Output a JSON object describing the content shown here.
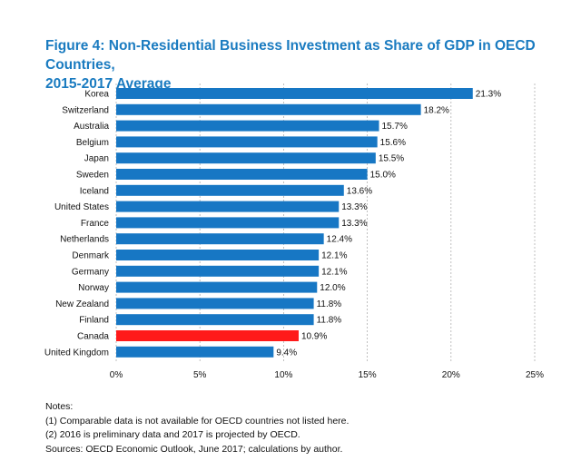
{
  "title_line1": "Figure 4: Non-Residential Business Investment as Share of GDP in OECD Countries,",
  "title_line2": "2015-2017 Average",
  "notes": {
    "heading": "Notes:",
    "lines": [
      "(1) Comparable data is not available for OECD countries not listed here.",
      "(2) 2016 is preliminary data and 2017 is projected by OECD.",
      "Sources: OECD Economic Outlook, June 2017; calculations by author."
    ]
  },
  "colors": {
    "bar": "#1777c4",
    "highlight": "#ff1a1a",
    "title": "#1a7bc0",
    "grid": "#b0b0b0"
  },
  "chart_data": {
    "type": "bar",
    "orientation": "horizontal",
    "title": "Figure 4: Non-Residential Business Investment as Share of GDP in OECD Countries, 2015-2017 Average",
    "categories": [
      "Korea",
      "Switzerland",
      "Australia",
      "Belgium",
      "Japan",
      "Sweden",
      "Iceland",
      "United States",
      "France",
      "Netherlands",
      "Denmark",
      "Germany",
      "Norway",
      "New Zealand",
      "Finland",
      "Canada",
      "United Kingdom"
    ],
    "values": [
      21.3,
      18.2,
      15.7,
      15.6,
      15.5,
      15.0,
      13.6,
      13.3,
      13.3,
      12.4,
      12.1,
      12.1,
      12.0,
      11.8,
      11.8,
      10.9,
      9.4
    ],
    "value_labels": [
      "21.3%",
      "18.2%",
      "15.7%",
      "15.6%",
      "15.5%",
      "15.0%",
      "13.6%",
      "13.3%",
      "13.3%",
      "12.4%",
      "12.1%",
      "12.1%",
      "12.0%",
      "11.8%",
      "11.8%",
      "10.9%",
      "9.4%"
    ],
    "highlight": "Canada",
    "xlim": [
      0,
      25
    ],
    "x_ticks": [
      0,
      5,
      10,
      15,
      20,
      25
    ],
    "x_tick_labels": [
      "0%",
      "5%",
      "10%",
      "15%",
      "20%",
      "25%"
    ],
    "grid": "vertical dashed"
  }
}
